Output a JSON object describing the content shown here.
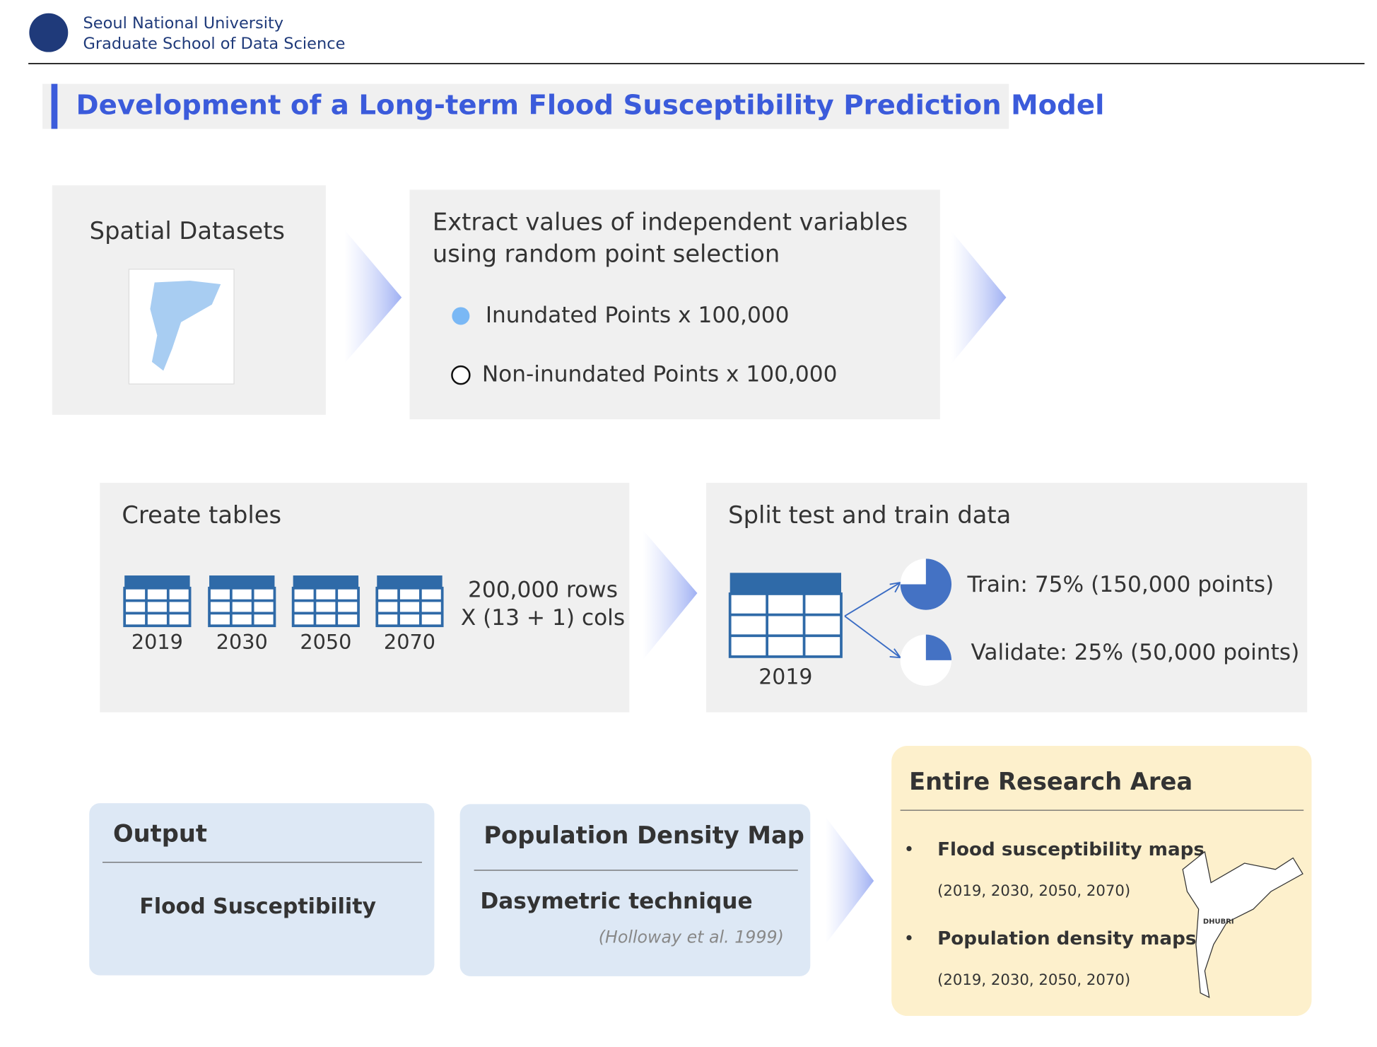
{
  "header": {
    "university": "Seoul National University",
    "school": "Graduate School of Data Science"
  },
  "title": "Development of a Long-term Flood Susceptibility Prediction Model",
  "spatial": {
    "title": "Spatial Datasets"
  },
  "extract": {
    "title_lines": [
      "Extract values of independent variables",
      "using random point selection"
    ],
    "points": [
      "Inundated Points x 100,000",
      "Non-inundated Points x 100,000"
    ]
  },
  "tables": {
    "title": "Create tables",
    "years": [
      "2019",
      "2030",
      "2050",
      "2070"
    ],
    "size_lines": [
      "200,000 rows",
      "X (13 + 1) cols"
    ]
  },
  "split": {
    "title": "Split test and train data",
    "year": "2019",
    "train": "Train: 75% (150,000 points)",
    "validate": "Validate: 25% (50,000 points)"
  },
  "output": {
    "title": "Output",
    "item": "Flood Susceptibility"
  },
  "population": {
    "title": "Population Density Map",
    "technique": "Dasymetric technique",
    "citation": "(Holloway et al. 1999)"
  },
  "research": {
    "title": "Entire Research Area",
    "items": [
      {
        "name": "Flood susceptibility maps",
        "years": "(2019, 2030, 2050, 2070)"
      },
      {
        "name": "Population density maps",
        "years": "(2019, 2030, 2050, 2070)"
      }
    ],
    "map_label": "DHUBRI"
  }
}
